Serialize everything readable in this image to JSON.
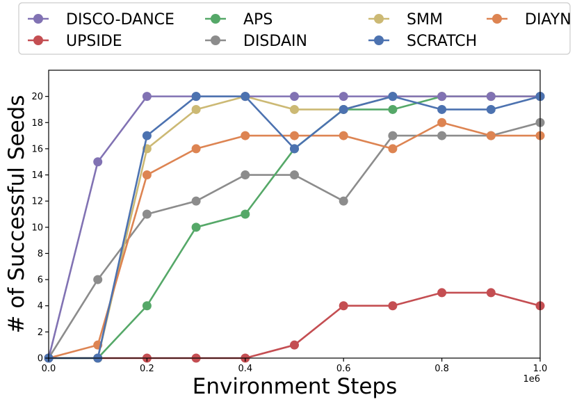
{
  "chart_data": {
    "type": "line",
    "title": "",
    "xlabel": "Environment Steps",
    "ylabel": "# of Successful Seeds",
    "x_offset_label": "1e6",
    "xlim": [
      0,
      1.0
    ],
    "ylim": [
      0,
      22
    ],
    "x_ticks": [
      0.0,
      0.2,
      0.4,
      0.6,
      0.8,
      1.0
    ],
    "x_tick_labels": [
      "0.0",
      "0.2",
      "0.4",
      "0.6",
      "0.8",
      "1.0"
    ],
    "y_ticks": [
      0,
      2,
      4,
      6,
      8,
      10,
      12,
      14,
      16,
      18,
      20
    ],
    "y_tick_labels": [
      "0",
      "2",
      "4",
      "6",
      "8",
      "10",
      "12",
      "14",
      "16",
      "18",
      "20"
    ],
    "grid": false,
    "legend_position": "top",
    "x": [
      0.0,
      0.1,
      0.2,
      0.3,
      0.4,
      0.5,
      0.6,
      0.7,
      0.8,
      0.9,
      1.0
    ],
    "series": [
      {
        "name": "DISCO-DANCE",
        "color": "#8172b3",
        "values": [
          0,
          15,
          20,
          20,
          20,
          20,
          20,
          20,
          20,
          20,
          20
        ]
      },
      {
        "name": "UPSIDE",
        "color": "#c44e52",
        "values": [
          0,
          0,
          0,
          0,
          0,
          1,
          4,
          4,
          5,
          5,
          4
        ]
      },
      {
        "name": "APS",
        "color": "#55a868",
        "values": [
          0,
          0,
          4,
          10,
          11,
          16,
          19,
          19,
          20,
          20,
          20
        ]
      },
      {
        "name": "DISDAIN",
        "color": "#8c8c8c",
        "values": [
          0,
          6,
          11,
          12,
          14,
          14,
          12,
          17,
          17,
          17,
          18
        ]
      },
      {
        "name": "SMM",
        "color": "#ccb974",
        "values": [
          0,
          0,
          16,
          19,
          20,
          19,
          19,
          20,
          20,
          20,
          20
        ]
      },
      {
        "name": "SCRATCH",
        "color": "#4c72b0",
        "values": [
          0,
          0,
          17,
          20,
          20,
          16,
          19,
          20,
          19,
          19,
          20
        ]
      },
      {
        "name": "DIAYN",
        "color": "#dd8452",
        "values": [
          0,
          1,
          14,
          16,
          17,
          17,
          17,
          16,
          18,
          17,
          17
        ]
      }
    ],
    "draw_order": [
      "DISDAIN",
      "UPSIDE",
      "APS",
      "SMM",
      "DIAYN",
      "DISCO-DANCE",
      "SCRATCH"
    ]
  }
}
